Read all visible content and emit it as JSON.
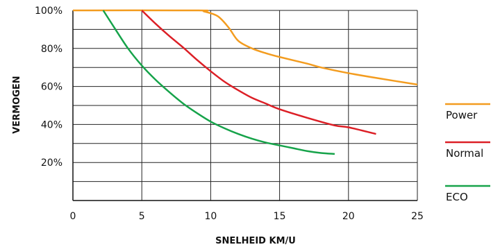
{
  "chart_data": {
    "type": "line",
    "xlabel": "SNELHEID KM/U",
    "ylabel": "VERMOGEN",
    "xlim": [
      0,
      25
    ],
    "ylim": [
      0,
      100
    ],
    "grid": true,
    "legend_position": "right",
    "x_ticks": [
      "0",
      "5",
      "10",
      "15",
      "20",
      "25"
    ],
    "y_ticks": [
      "20%",
      "40%",
      "60%",
      "80%",
      "100%"
    ],
    "series": [
      {
        "name": "Power",
        "color": "#f39c1f",
        "points": [
          [
            0,
            100
          ],
          [
            9,
            100
          ],
          [
            9.5,
            99.5
          ],
          [
            10.5,
            97
          ],
          [
            11.3,
            91
          ],
          [
            12,
            84
          ],
          [
            13,
            80
          ],
          [
            14,
            77.5
          ],
          [
            15,
            75.5
          ],
          [
            17,
            72
          ],
          [
            18,
            70
          ],
          [
            20,
            67
          ],
          [
            22,
            64.5
          ],
          [
            25,
            61
          ]
        ]
      },
      {
        "name": "Normal",
        "color": "#dc1f26",
        "points": [
          [
            5,
            100
          ],
          [
            6,
            93
          ],
          [
            7,
            86.5
          ],
          [
            8,
            80.5
          ],
          [
            9,
            74
          ],
          [
            10,
            68
          ],
          [
            11,
            62.5
          ],
          [
            12,
            58
          ],
          [
            13,
            54
          ],
          [
            14,
            51
          ],
          [
            15,
            48
          ],
          [
            17,
            43.5
          ],
          [
            19,
            39.5
          ],
          [
            20,
            38.5
          ],
          [
            22,
            35
          ]
        ]
      },
      {
        "name": "ECO",
        "color": "#16a34a",
        "points": [
          [
            2.2,
            100
          ],
          [
            3,
            91
          ],
          [
            4,
            80
          ],
          [
            5,
            71
          ],
          [
            6,
            63.5
          ],
          [
            7,
            57
          ],
          [
            8,
            51
          ],
          [
            9,
            46
          ],
          [
            10,
            41.5
          ],
          [
            11,
            38
          ],
          [
            12,
            35
          ],
          [
            13,
            32.5
          ],
          [
            14,
            30.5
          ],
          [
            15,
            29
          ],
          [
            16,
            27.5
          ],
          [
            17,
            26
          ],
          [
            18,
            25
          ],
          [
            19,
            24.5
          ]
        ]
      }
    ]
  }
}
